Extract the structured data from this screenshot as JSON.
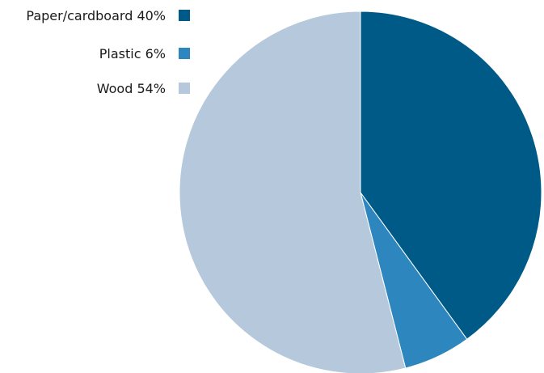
{
  "chart_data": {
    "type": "pie",
    "title": "",
    "slices": [
      {
        "label": "Paper/cardboard",
        "value": 40,
        "display": "Paper/cardboard 40%",
        "color": "#005a87"
      },
      {
        "label": "Plastic",
        "value": 6,
        "display": "Plastic 6%",
        "color": "#2e86bf"
      },
      {
        "label": "Wood",
        "value": 54,
        "display": "Wood 54%",
        "color": "#b5c8dc"
      }
    ],
    "start_angle": "12 o'clock",
    "direction": "clockwise",
    "legend_position": "top-left"
  }
}
